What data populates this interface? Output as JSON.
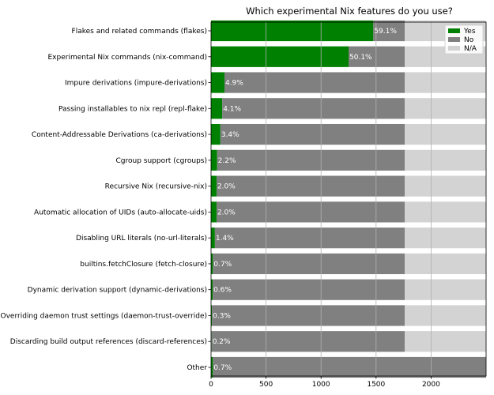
{
  "chart_data": {
    "type": "bar",
    "orientation": "horizontal",
    "stacked": true,
    "title": "Which experimental Nix features do you use?",
    "xlabel": "",
    "ylabel": "",
    "xlim": [
      0,
      2500
    ],
    "xticks": [
      "0",
      "500",
      "1000",
      "1500",
      "2000"
    ],
    "grid": "x",
    "legend": "top-right",
    "categories": [
      "Flakes and related commands (flakes)",
      "Experimental Nix commands (nix-command)",
      "Impure derivations (impure-derivations)",
      "Passing installables to nix repl (repl-flake)",
      "Content-Addressable Derivations (ca-derivations)",
      "Cgroup support (cgroups)",
      "Recursive Nix (recursive-nix)",
      "Automatic allocation of UIDs (auto-allocate-uids)",
      "Disabling URL literals (no-url-literals)",
      "builtins.fetchClosure (fetch-closure)",
      "Dynamic derivation support (dynamic-derivations)",
      "Overriding daemon trust settings (daemon-trust-override)",
      "Discarding build output references (discard-references)",
      "Other"
    ],
    "series": [
      {
        "name": "Yes",
        "color": "#008000",
        "values": [
          1475,
          1250,
          122,
          102,
          85,
          55,
          50,
          50,
          35,
          17,
          15,
          8,
          5,
          17
        ]
      },
      {
        "name": "No",
        "color": "#808080",
        "values": [
          285,
          510,
          1638,
          1658,
          1675,
          1705,
          1710,
          1710,
          1725,
          1743,
          1745,
          1752,
          1755,
          2483
        ]
      },
      {
        "name": "N/A",
        "color": "#d3d3d3",
        "values": [
          740,
          740,
          740,
          740,
          740,
          740,
          740,
          740,
          740,
          740,
          740,
          740,
          740,
          0
        ]
      }
    ],
    "bar_labels": [
      "59.1%",
      "50.1%",
      "4.9%",
      "4.1%",
      "3.4%",
      "2.2%",
      "2.0%",
      "2.0%",
      "1.4%",
      "0.7%",
      "0.6%",
      "0.3%",
      "0.2%",
      "0.7%"
    ]
  }
}
